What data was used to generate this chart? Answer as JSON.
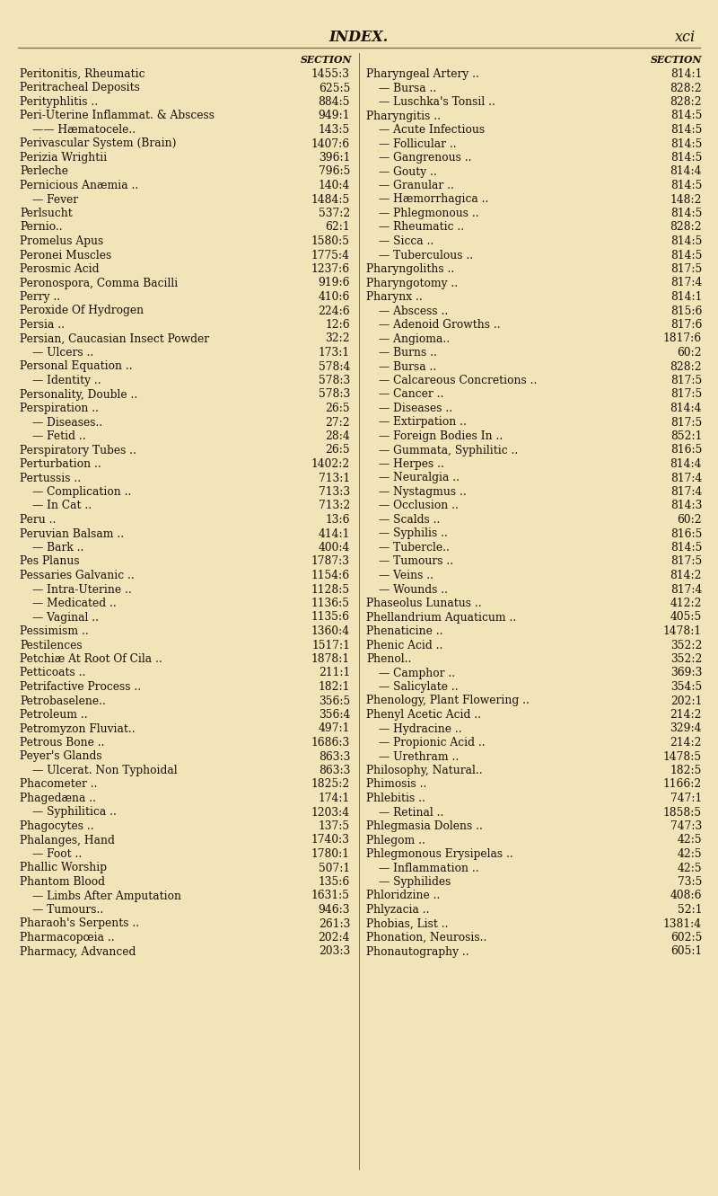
{
  "background_color": "#f0e4b8",
  "header_title": "INDEX.",
  "header_page": "xci",
  "text_color": "#1a1008",
  "line_color": "#7a6a4a",
  "font_size": 8.8,
  "header_font_size": 11.5,
  "section_label_font_size": 7.8,
  "left_col": [
    [
      "Peritonitis, Rheumatic",
      "1455:3",
      0
    ],
    [
      "Peritracheal Deposits",
      "625:5",
      0
    ],
    [
      "Perityphlitis ..",
      "884:5",
      0
    ],
    [
      "Peri-Uterine Inflammat. & Abscess",
      "949:1",
      0
    ],
    [
      "—— Hæmatocele..",
      "143:5",
      1
    ],
    [
      "Perivascular System (Brain)",
      "1407:6",
      0
    ],
    [
      "Perizia Wrightii",
      "396:1",
      0
    ],
    [
      "Perleche",
      "796:5",
      0
    ],
    [
      "Pernicious Anæmia ..",
      "140:4",
      0
    ],
    [
      "— Fever",
      "1484:5",
      1
    ],
    [
      "Perlsucht",
      "537:2",
      0
    ],
    [
      "Pernio..",
      "62:1",
      0
    ],
    [
      "Promelus Apus",
      "1580:5",
      0
    ],
    [
      "Peronei Muscles",
      "1775:4",
      0
    ],
    [
      "Perosmic Acid",
      "1237:6",
      0
    ],
    [
      "Peronospora, Comma Bacilli",
      "919:6",
      0
    ],
    [
      "Perry ..",
      "410:6",
      0
    ],
    [
      "Peroxide Of Hydrogen",
      "224:6",
      0
    ],
    [
      "Persia ..",
      "12:6",
      0
    ],
    [
      "Persian, Caucasian Insect Powder",
      "32:2",
      0
    ],
    [
      "— Ulcers ..",
      "173:1",
      1
    ],
    [
      "Personal Equation ..",
      "578:4",
      0
    ],
    [
      "— Identity ..",
      "578:3",
      1
    ],
    [
      "Personality, Double ..",
      "578:3",
      0
    ],
    [
      "Perspiration ..",
      "26:5",
      0
    ],
    [
      "— Diseases..",
      "27:2",
      1
    ],
    [
      "— Fetid ..",
      "28:4",
      1
    ],
    [
      "Perspiratory Tubes ..",
      "26:5",
      0
    ],
    [
      "Perturbation ..",
      "1402:2",
      0
    ],
    [
      "Pertussis ..",
      "713:1",
      0
    ],
    [
      "— Complication ..",
      "713:3",
      1
    ],
    [
      "— In Cat ..",
      "713:2",
      1
    ],
    [
      "Peru ..",
      "13:6",
      0
    ],
    [
      "Peruvian Balsam ..",
      "414:1",
      0
    ],
    [
      "— Bark ..",
      "400:4",
      1
    ],
    [
      "Pes Planus",
      "1787:3",
      0
    ],
    [
      "Pessaries Galvanic ..",
      "1154:6",
      0
    ],
    [
      "— Intra-Uterine ..",
      "1128:5",
      1
    ],
    [
      "— Medicated ..",
      "1136:5",
      1
    ],
    [
      "— Vaginal ..",
      "1135:6",
      1
    ],
    [
      "Pessimism ..",
      "1360:4",
      0
    ],
    [
      "Pestilences",
      "1517:1",
      0
    ],
    [
      "Petchiæ At Root Of Cila ..",
      "1878:1",
      0
    ],
    [
      "Petticoats ..",
      "211:1",
      0
    ],
    [
      "Petrifactive Process ..",
      "182:1",
      0
    ],
    [
      "Petrobaselene..",
      "356:5",
      0
    ],
    [
      "Petroleum ..",
      "356:4",
      0
    ],
    [
      "Petromyzon Fluviat..",
      "497:1",
      0
    ],
    [
      "Petrous Bone ..",
      "1686:3",
      0
    ],
    [
      "Peyer's Glands",
      "863:3",
      0
    ],
    [
      "— Ulcerat. Non Typhoidal",
      "863:3",
      1
    ],
    [
      "Phacometer ..",
      "1825:2",
      0
    ],
    [
      "Phagedæna ..",
      "174:1",
      0
    ],
    [
      "— Syphilitica ..",
      "1203:4",
      1
    ],
    [
      "Phagocytes ..",
      "137:5",
      0
    ],
    [
      "Phalanges, Hand",
      "1740:3",
      0
    ],
    [
      "— Foot ..",
      "1780:1",
      1
    ],
    [
      "Phallic Worship",
      "507:1",
      0
    ],
    [
      "Phantom Blood",
      "135:6",
      0
    ],
    [
      "— Limbs After Amputation",
      "1631:5",
      1
    ],
    [
      "— Tumours..",
      "946:3",
      1
    ],
    [
      "Pharaoh's Serpents ..",
      "261:3",
      0
    ],
    [
      "Pharmacopœia ..",
      "202:4",
      0
    ],
    [
      "Pharmacy, Advanced",
      "203:3",
      0
    ]
  ],
  "right_col": [
    [
      "Pharyngeal Artery ..",
      "814:1",
      0
    ],
    [
      "— Bursa ..",
      "828:2",
      1
    ],
    [
      "— Luschka's Tonsil ..",
      "828:2",
      1
    ],
    [
      "Pharyngitis ..",
      "814:5",
      0
    ],
    [
      "— Acute Infectious",
      "814:5",
      1
    ],
    [
      "— Follicular ..",
      "814:5",
      1
    ],
    [
      "— Gangrenous ..",
      "814:5",
      1
    ],
    [
      "— Gouty ..",
      "814:4",
      1
    ],
    [
      "— Granular ..",
      "814:5",
      1
    ],
    [
      "— Hæmorrhagica ..",
      "148:2",
      1
    ],
    [
      "— Phlegmonous ..",
      "814:5",
      1
    ],
    [
      "— Rheumatic ..",
      "828:2",
      1
    ],
    [
      "— Sicca ..",
      "814:5",
      1
    ],
    [
      "— Tuberculous ..",
      "814:5",
      1
    ],
    [
      "Pharyngoliths ..",
      "817:5",
      0
    ],
    [
      "Pharyngotomy ..",
      "817:4",
      0
    ],
    [
      "Pharynx ..",
      "814:1",
      0
    ],
    [
      "— Abscess ..",
      "815:6",
      1
    ],
    [
      "— Adenoid Growths ..",
      "817:6",
      1
    ],
    [
      "— Angioma..",
      "1817:6",
      1
    ],
    [
      "— Burns ..",
      "60:2",
      1
    ],
    [
      "— Bursa ..",
      "828:2",
      1
    ],
    [
      "— Calcareous Concretions ..",
      "817:5",
      1
    ],
    [
      "— Cancer ..",
      "817:5",
      1
    ],
    [
      "— Diseases ..",
      "814:4",
      1
    ],
    [
      "— Extirpation ..",
      "817:5",
      1
    ],
    [
      "— Foreign Bodies In ..",
      "852:1",
      1
    ],
    [
      "— Gummata, Syphilitic ..",
      "816:5",
      1
    ],
    [
      "— Herpes ..",
      "814:4",
      1
    ],
    [
      "— Neuralgia ..",
      "817:4",
      1
    ],
    [
      "— Nystagmus ..",
      "817:4",
      1
    ],
    [
      "— Occlusion ..",
      "814:3",
      1
    ],
    [
      "— Scalds ..",
      "60:2",
      1
    ],
    [
      "— Syphilis ..",
      "816:5",
      1
    ],
    [
      "— Tubercle..",
      "814:5",
      1
    ],
    [
      "— Tumours ..",
      "817:5",
      1
    ],
    [
      "— Veins ..",
      "814:2",
      1
    ],
    [
      "— Wounds ..",
      "817:4",
      1
    ],
    [
      "Phaseolus Lunatus ..",
      "412:2",
      0
    ],
    [
      "Phellandrium Aquaticum ..",
      "405:5",
      0
    ],
    [
      "Phenaticine ..",
      "1478:1",
      0
    ],
    [
      "Phenic Acid ..",
      "352:2",
      0
    ],
    [
      "Phenol..",
      "352:2",
      0
    ],
    [
      "— Camphor ..",
      "369:3",
      1
    ],
    [
      "— Salicylate ..",
      "354:5",
      1
    ],
    [
      "Phenology, Plant Flowering ..",
      "202:1",
      0
    ],
    [
      "Phenyl Acetic Acid ..",
      "214:2",
      0
    ],
    [
      "— Hydracine ..",
      "329:4",
      1
    ],
    [
      "— Propionic Acid ..",
      "214:2",
      1
    ],
    [
      "— Urethram ..",
      "1478:5",
      1
    ],
    [
      "Philosophy, Natural..",
      "182:5",
      0
    ],
    [
      "Phimosis ..",
      "1166:2",
      0
    ],
    [
      "Phlebitis ..",
      "747:1",
      0
    ],
    [
      "— Retinal ..",
      "1858:5",
      1
    ],
    [
      "Phlegmasia Dolens ..",
      "747:3",
      0
    ],
    [
      "Phlegom ..",
      "42:5",
      0
    ],
    [
      "Phlegmonous Erysipelas ..",
      "42:5",
      0
    ],
    [
      "— Inflammation ..",
      "42:5",
      1
    ],
    [
      "— Syphilides",
      "73:5",
      1
    ],
    [
      "Phloridzine ..",
      "408:6",
      0
    ],
    [
      "Phlyzacia ..",
      "52:1",
      0
    ],
    [
      "Phobias, List ..",
      "1381:4",
      0
    ],
    [
      "Phonation, Neurosis..",
      "602:5",
      0
    ],
    [
      "Phonautography ..",
      "605:1",
      0
    ]
  ]
}
